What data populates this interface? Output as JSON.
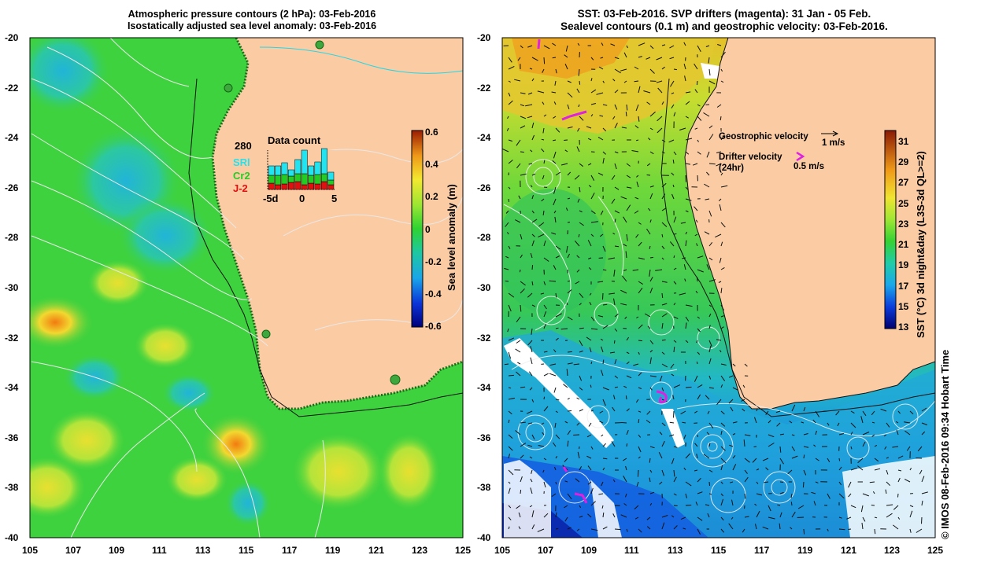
{
  "left_map": {
    "title_line1": "Atmospheric pressure contours (2 hPa): 03-Feb-2016",
    "title_line2": "Isostatically adjusted sea level anomaly: 03-Feb-2016",
    "x_ticks": [
      "105",
      "107",
      "109",
      "111",
      "113",
      "115",
      "117",
      "119",
      "121",
      "123",
      "125"
    ],
    "y_ticks": [
      "-20",
      "-22",
      "-24",
      "-26",
      "-28",
      "-30",
      "-32",
      "-34",
      "-36",
      "-38",
      "-40"
    ],
    "colorbar": {
      "label": "Sea level anomaly (m)",
      "ticks": [
        "0.6",
        "0.4",
        "0.2",
        "0",
        "-0.2",
        "-0.4",
        "-0.6"
      ],
      "range": [
        -0.6,
        0.6
      ]
    },
    "data_count": {
      "title": "Data count",
      "max_label": "280",
      "satellites": [
        {
          "name": "SRl",
          "color": "#22e3f0"
        },
        {
          "name": "Cr2",
          "color": "#22cc22"
        },
        {
          "name": "J-2",
          "color": "#e01010"
        }
      ],
      "x_labels": [
        "-5d",
        "0",
        "5"
      ]
    }
  },
  "right_map": {
    "title_line1": "SST: 03-Feb-2016. SVP drifters (magenta): 31 Jan - 05 Feb.",
    "title_line2": "Sealevel contours (0.1 m) and geostrophic velocity: 03-Feb-2016.",
    "x_ticks": [
      "105",
      "107",
      "109",
      "111",
      "113",
      "115",
      "117",
      "119",
      "121",
      "123",
      "125"
    ],
    "y_ticks": [
      "-20",
      "-22",
      "-24",
      "-26",
      "-28",
      "-30",
      "-32",
      "-34",
      "-36",
      "-38",
      "-40"
    ],
    "legend": {
      "geo_label": "Geostrophic velocity",
      "geo_scale": "1 m/s",
      "drifter_label_1": "Drifter velocity",
      "drifter_label_2": "(24hr)",
      "drifter_scale": "0.5 m/s"
    },
    "colorbar": {
      "label": "SST (°C) 3d night&day (L3S-3d QL>=2)",
      "ticks": [
        "31",
        "29",
        "27",
        "25",
        "23",
        "21",
        "19",
        "17",
        "15",
        "13"
      ],
      "range": [
        13,
        32
      ]
    }
  },
  "credit": "© IMOS 08-Feb-2016 09:34 Hobart Time",
  "colors": {
    "land": "#fbcca4",
    "sea_green": "#3ed23e",
    "drifter": "#e020e0"
  }
}
